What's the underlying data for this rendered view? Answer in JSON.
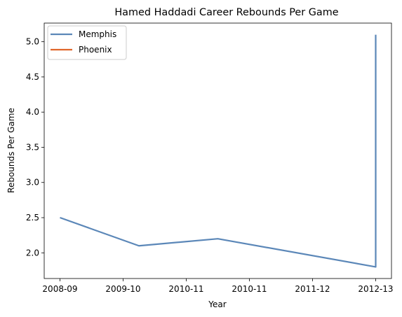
{
  "chart_data": {
    "type": "line",
    "title": "Hamed Haddadi Career Rebounds Per Game",
    "xlabel": "Year",
    "ylabel": "Rebounds Per Game",
    "categories": [
      "2008-09",
      "2009-10",
      "2010-11",
      "2010-11",
      "2011-12",
      "2012-13"
    ],
    "ylim": [
      1.635,
      5.265
    ],
    "yticks": [
      2.0,
      2.5,
      3.0,
      3.5,
      4.0,
      4.5,
      5.0
    ],
    "ytick_labels": [
      "2.0",
      "2.5",
      "3.0",
      "3.5",
      "4.0",
      "4.5",
      "5.0"
    ],
    "grid": false,
    "legend_position": "top-left",
    "series": [
      {
        "name": "Memphis",
        "color": "#5b87b8",
        "points": [
          {
            "x": 0.0,
            "y": 2.5
          },
          {
            "x": 1.0,
            "y": 2.1
          },
          {
            "x": 2.0,
            "y": 2.2
          },
          {
            "x": 4.0,
            "y": 1.8
          },
          {
            "x": 4.0,
            "y": 5.1
          }
        ]
      },
      {
        "name": "Phoenix",
        "color": "#e0662a",
        "points": []
      }
    ]
  }
}
